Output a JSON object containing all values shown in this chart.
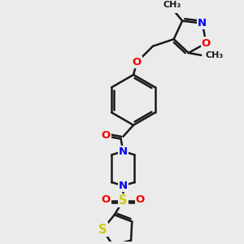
{
  "bg_color": "#ebebeb",
  "bond_color": "#1a1a1a",
  "bond_width": 1.8,
  "colors": {
    "N": "#0000ee",
    "O": "#ee0000",
    "S": "#cccc00",
    "C": "#1a1a1a"
  },
  "font_size": 8.5
}
